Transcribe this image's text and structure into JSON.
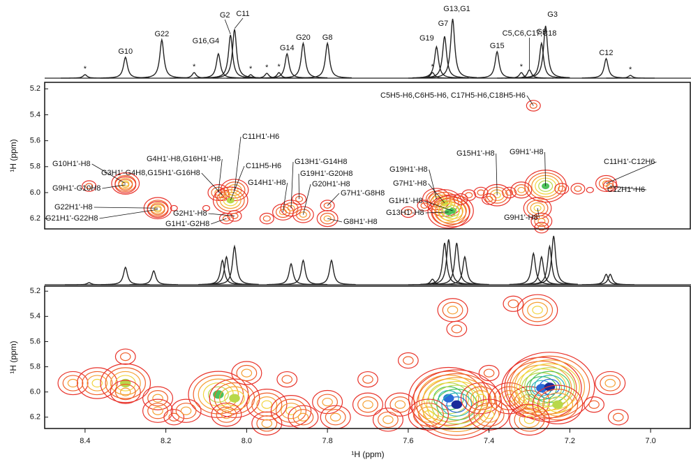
{
  "chart_data": [
    {
      "type": "spectrum",
      "color": "#222222",
      "xlim": [
        8.5,
        6.9
      ],
      "x": [
        8.4,
        8.3,
        8.21,
        8.13,
        8.07,
        8.04,
        8.03,
        7.99,
        7.95,
        7.92,
        7.9,
        7.86,
        7.8,
        7.54,
        7.53,
        7.51,
        7.49,
        7.38,
        7.32,
        7.3,
        7.27,
        7.26,
        7.11,
        7.05
      ],
      "values": [
        5,
        30,
        55,
        8,
        35,
        62,
        70,
        5,
        7,
        8,
        35,
        50,
        50,
        8,
        45,
        60,
        85,
        38,
        8,
        12,
        50,
        75,
        28,
        4
      ],
      "labels": [
        "*",
        "G10",
        "G22",
        "*",
        "G16,G4",
        "G2",
        "C11",
        "*",
        "*",
        "*",
        "G14",
        "G20",
        "G8",
        "*",
        "G19",
        "G7",
        "G13,G1",
        "G15",
        "*",
        "C5,C6,C17,C18",
        "G9",
        "G3",
        "C12",
        "*"
      ]
    },
    {
      "type": "contour",
      "xlim": [
        8.5,
        6.9
      ],
      "ylim": [
        5.15,
        6.28
      ],
      "yticks": [
        5.2,
        5.4,
        5.6,
        5.8,
        {
          "value": 6,
          "label": "6.0"
        },
        6.2
      ],
      "ylabel": "¹H (ppm)",
      "colors": [
        "#e8322a",
        "#f0602a",
        "#f5a033",
        "#f2d43e",
        "#b8d84a",
        "#4cc25a",
        "#2ab5b8",
        "#2a6ad8",
        "#1a2a9a"
      ],
      "x": [
        8.3,
        8.3,
        8.39,
        8.22,
        8.22,
        8.18,
        8.07,
        8.06,
        8.03,
        8.04,
        8.03,
        8.05,
        8.1,
        7.91,
        7.89,
        7.87,
        7.86,
        7.8,
        7.8,
        7.95,
        7.53,
        7.51,
        7.49,
        7.5,
        7.38,
        7.26,
        7.28,
        7.11,
        7.1,
        7.29,
        7.45,
        7.42,
        7.35,
        7.32,
        7.22,
        7.18,
        7.15,
        7.6,
        7.56,
        7.27,
        7.27,
        7.47,
        7.4
      ],
      "y": [
        5.93,
        5.94,
        5.95,
        6.12,
        6.13,
        6.12,
        6.0,
        6.02,
        5.98,
        6.06,
        6.18,
        6.2,
        6.12,
        6.15,
        6.12,
        6.05,
        6.17,
        6.1,
        6.2,
        6.2,
        6.05,
        6.08,
        6.14,
        6.15,
        6.02,
        5.95,
        6.12,
        5.93,
        5.95,
        5.33,
        6.02,
        6.0,
        6.0,
        5.98,
        5.97,
        5.97,
        5.98,
        6.15,
        6.1,
        6.22,
        6.27,
        6.05,
        6.05
      ],
      "levels": [
        4,
        3,
        2,
        4,
        3,
        1,
        3,
        2,
        4,
        5,
        2,
        2,
        1,
        3,
        3,
        2,
        3,
        2,
        3,
        2,
        4,
        5,
        6,
        6,
        4,
        6,
        4,
        3,
        2,
        2,
        2,
        2,
        2,
        3,
        2,
        2,
        1,
        2,
        2,
        3,
        2,
        2,
        2
      ],
      "labels": [
        "G10H1'-H8",
        "G9H1'-G10H8",
        null,
        "G22H1'-H8",
        "G21H1'-G22H8",
        null,
        "G4H1'-H8,G16H1'-H8",
        "G3H1'-G4H8,G15H1'-G16H8",
        "C11H1'-H6",
        "C11H5-H6",
        "G2H1'-H8",
        "G1H1'-G2H8",
        null,
        "G14H1'-H8",
        "G13H1'-G14H8",
        "G19H1'-G20H8",
        "G20H1'-H8",
        "G7H1'-G8H8",
        "G8H1'-H8",
        null,
        "G19H1'-H8",
        "G7H1'-H8",
        "G1H1'-H8",
        "G13H1'-H8",
        "G15H1'-H8",
        "G9H1'-H8",
        "G9H1'-H8",
        "C11H1'-C12H6",
        "C12H1'-H6",
        "C5H5-H6,C6H5-H6, C17H5-H6,C18H5-H6",
        null,
        null,
        null,
        null,
        null,
        null,
        null,
        null,
        null,
        null,
        null,
        null,
        null
      ]
    },
    {
      "type": "spectrum",
      "color": "#222222",
      "xlim": [
        8.5,
        6.9
      ],
      "x": [
        8.39,
        8.3,
        8.23,
        8.06,
        8.05,
        8.03,
        7.89,
        7.86,
        7.79,
        7.54,
        7.51,
        7.5,
        7.48,
        7.46,
        7.29,
        7.27,
        7.25,
        7.24,
        7.11,
        7.1
      ],
      "values": [
        3,
        25,
        20,
        35,
        40,
        55,
        30,
        35,
        35,
        8,
        60,
        65,
        60,
        40,
        45,
        40,
        55,
        70,
        15,
        15
      ]
    },
    {
      "type": "contour",
      "xlim": [
        8.5,
        6.9
      ],
      "ylim": [
        5.16,
        6.29
      ],
      "yticks": [
        5.2,
        5.4,
        5.6,
        5.8,
        {
          "value": 6,
          "label": "6.0"
        },
        6.2
      ],
      "ylabel": "¹H (ppm)",
      "xticks": [
        8.4,
        8.2,
        {
          "value": 8,
          "label": "8.0"
        },
        7.8,
        7.6,
        7.4,
        7.2,
        {
          "value": 7,
          "label": "7.0"
        }
      ],
      "xlabel": "¹H (ppm)",
      "colors": [
        "#e8322a",
        "#f0602a",
        "#f5a033",
        "#f2d43e",
        "#b8d84a",
        "#4cc25a",
        "#2ab5b8",
        "#2a6ad8",
        "#1a2a9a"
      ],
      "x": [
        8.43,
        8.37,
        8.3,
        8.3,
        8.3,
        8.22,
        8.22,
        8.18,
        8.07,
        8.03,
        8.05,
        7.95,
        7.89,
        7.86,
        7.8,
        7.78,
        7.7,
        7.62,
        7.5,
        7.48,
        7.42,
        7.35,
        7.3,
        7.27,
        7.25,
        7.23,
        7.28,
        7.34,
        7.49,
        7.48,
        7.1,
        7.08,
        7.14,
        7.6,
        7.9,
        8.0,
        7.7,
        7.4,
        8.15,
        7.55,
        7.4,
        7.65,
        7.95,
        7.3
      ],
      "y": [
        5.93,
        5.93,
        5.93,
        5.72,
        6.0,
        6.05,
        6.15,
        6.2,
        6.02,
        6.05,
        6.18,
        6.1,
        6.15,
        6.2,
        6.08,
        6.2,
        6.1,
        6.1,
        6.05,
        6.1,
        6.05,
        6.05,
        6.08,
        5.97,
        5.96,
        6.1,
        5.35,
        5.3,
        5.35,
        5.5,
        5.93,
        6.2,
        6.1,
        5.75,
        5.9,
        5.85,
        5.9,
        5.85,
        6.15,
        6.18,
        6.18,
        6.22,
        6.25,
        6.22
      ],
      "levels": [
        3,
        4,
        5,
        2,
        3,
        3,
        3,
        2,
        6,
        5,
        3,
        4,
        4,
        3,
        3,
        3,
        3,
        3,
        8,
        9,
        4,
        4,
        4,
        8,
        9,
        5,
        4,
        2,
        3,
        2,
        3,
        2,
        2,
        2,
        2,
        3,
        2,
        2,
        3,
        4,
        4,
        3,
        3,
        4
      ]
    }
  ]
}
